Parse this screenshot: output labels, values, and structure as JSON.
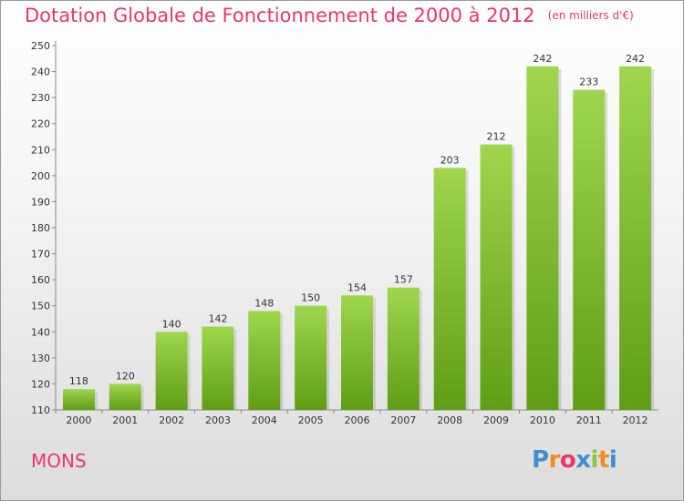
{
  "chart_data": {
    "type": "bar",
    "title": "Dotation Globale de Fonctionnement de 2000 à 2012",
    "subtitle": "(en milliers d'€)",
    "categories": [
      "2000",
      "2001",
      "2002",
      "2003",
      "2004",
      "2005",
      "2006",
      "2007",
      "2008",
      "2009",
      "2010",
      "2011",
      "2012"
    ],
    "values": [
      118,
      120,
      140,
      142,
      148,
      150,
      154,
      157,
      203,
      212,
      242,
      233,
      242
    ],
    "ylim": [
      110,
      250
    ],
    "yticks": [
      110,
      120,
      130,
      140,
      150,
      160,
      170,
      180,
      190,
      200,
      210,
      220,
      230,
      240,
      250
    ],
    "grid": false,
    "bar_color": "#7cc330"
  },
  "footer": {
    "city": "MONS",
    "logo_letters": [
      "P",
      "r",
      "o",
      "x",
      "i",
      "t",
      "i"
    ],
    "logo_colors": [
      "#3d8fd6",
      "#f28c1e",
      "#e8366e",
      "#3d8fd6",
      "#8cc63f",
      "#f28c1e",
      "#3d8fd6"
    ]
  }
}
